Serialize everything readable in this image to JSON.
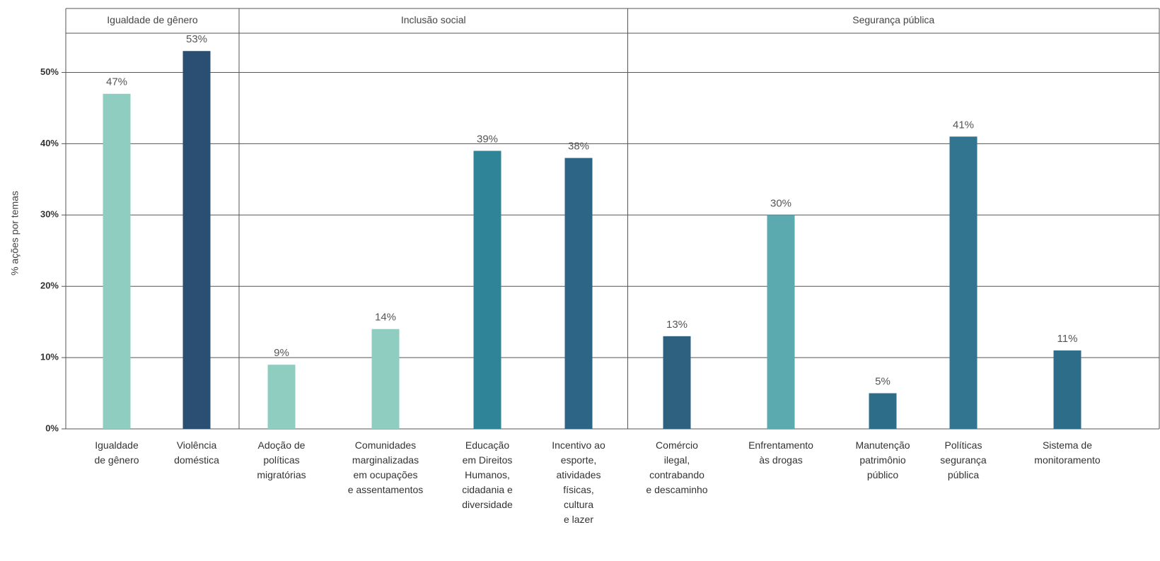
{
  "chart_data": {
    "type": "bar",
    "y_label": "% ações por temas",
    "groups": [
      {
        "name": "Igualdade de gênero",
        "count": 2
      },
      {
        "name": "Inclusão social",
        "count": 4
      },
      {
        "name": "Segurança pública",
        "count": 5
      }
    ],
    "categories": [
      "Igualdade\nde gênero",
      "Violência\ndoméstica",
      "Adoção de\npolíticas\nmigratórias",
      "Comunidades\nmarginalizadas\nem ocupações\ne assentamentos",
      "Educação\nem Direitos\nHumanos,\ncidadania e\ndiversidade",
      "Incentivo ao\nesporte,\natividades\nfísicas,\ncultura\ne lazer",
      "Comércio\nilegal,\ncontrabando\ne descaminho",
      "Enfrentamento\nàs drogas",
      "Manutenção\npatrimônio\npúblico",
      "Políticas\nsegurança\npública",
      "Sistema de\nmonitoramento"
    ],
    "values": [
      47,
      53,
      9,
      14,
      39,
      38,
      13,
      30,
      5,
      41,
      11
    ],
    "value_labels": [
      "47%",
      "53%",
      "9%",
      "14%",
      "39%",
      "38%",
      "13%",
      "30%",
      "5%",
      "41%",
      "11%"
    ],
    "colors": [
      "#8ecdc0",
      "#2b4f72",
      "#8ecdc0",
      "#8ecdc0",
      "#2f8597",
      "#2c6585",
      "#2e607f",
      "#5aaab0",
      "#2e6d8a",
      "#317591",
      "#2e6d8a"
    ],
    "ylim": [
      0,
      55.5
    ],
    "yticks": [
      {
        "value": 0,
        "label": "0%"
      },
      {
        "value": 10,
        "label": "10%"
      },
      {
        "value": 20,
        "label": "20%"
      },
      {
        "value": 30,
        "label": "30%"
      },
      {
        "value": 40,
        "label": "40%"
      },
      {
        "value": 50,
        "label": "50%"
      }
    ],
    "grid": true
  }
}
